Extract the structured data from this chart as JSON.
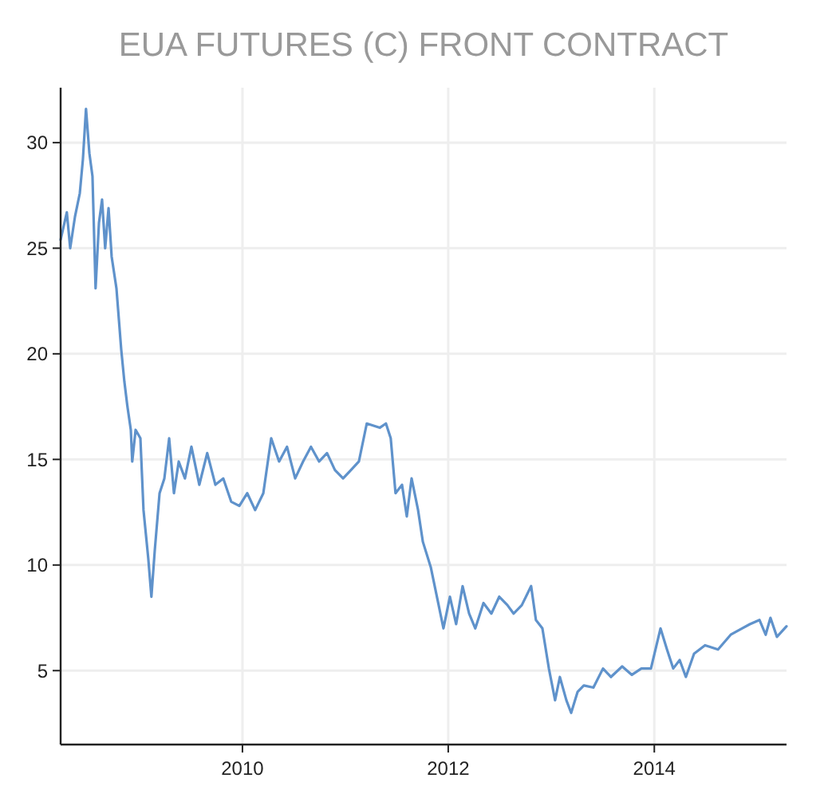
{
  "chart_data": {
    "type": "line",
    "title": "EUA FUTURES (C) FRONT CONTRACT",
    "x": [
      "2008-03-27",
      "2008-04-18",
      "2008-04-30",
      "2008-05-17",
      "2008-06-03",
      "2008-06-14",
      "2008-06-25",
      "2008-07-07",
      "2008-07-18",
      "2008-07-29",
      "2008-08-10",
      "2008-08-21",
      "2008-09-01",
      "2008-09-13",
      "2008-09-24",
      "2008-10-11",
      "2008-10-28",
      "2008-11-08",
      "2008-11-19",
      "2008-12-01",
      "2008-12-06",
      "2008-12-18",
      "2009-01-04",
      "2009-01-15",
      "2009-02-01",
      "2009-02-12",
      "2009-02-24",
      "2009-03-13",
      "2009-03-30",
      "2009-04-16",
      "2009-05-03",
      "2009-05-20",
      "2009-06-11",
      "2009-07-04",
      "2009-08-01",
      "2009-08-29",
      "2009-09-27",
      "2009-10-25",
      "2009-11-22",
      "2009-12-21",
      "2010-01-18",
      "2010-02-15",
      "2010-03-16",
      "2010-04-13",
      "2010-05-11",
      "2010-06-08",
      "2010-07-07",
      "2010-08-04",
      "2010-09-01",
      "2010-09-30",
      "2010-10-28",
      "2010-11-25",
      "2010-12-24",
      "2011-01-21",
      "2011-02-18",
      "2011-03-18",
      "2011-05-03",
      "2011-05-25",
      "2011-06-11",
      "2011-06-28",
      "2011-07-21",
      "2011-08-07",
      "2011-08-24",
      "2011-09-16",
      "2011-10-03",
      "2011-10-31",
      "2011-11-28",
      "2011-12-15",
      "2012-01-07",
      "2012-01-29",
      "2012-02-21",
      "2012-03-15",
      "2012-04-06",
      "2012-05-05",
      "2012-06-02",
      "2012-06-30",
      "2012-07-29",
      "2012-08-20",
      "2012-09-18",
      "2012-10-21",
      "2012-11-07",
      "2012-11-30",
      "2012-12-23",
      "2013-01-14",
      "2013-01-31",
      "2013-02-23",
      "2013-03-12",
      "2013-04-04",
      "2013-04-26",
      "2013-05-30",
      "2013-07-03",
      "2013-07-31",
      "2013-09-09",
      "2013-10-13",
      "2013-11-16",
      "2013-12-20",
      "2014-01-23",
      "2014-02-15",
      "2014-03-09",
      "2014-04-01",
      "2014-04-23",
      "2014-05-22",
      "2014-06-30",
      "2014-08-15",
      "2014-09-29",
      "2014-11-08",
      "2014-12-06",
      "2015-01-09",
      "2015-01-31",
      "2015-02-17",
      "2015-03-12",
      "2015-04-15"
    ],
    "series": [
      {
        "color": "#5f92cb",
        "values": [
          25.4,
          26.7,
          25,
          26.5,
          27.6,
          29.2,
          31.6,
          29.5,
          28.4,
          23.1,
          26.2,
          27.3,
          25,
          26.9,
          24.6,
          23.1,
          20.2,
          18.7,
          17.5,
          16.4,
          14.9,
          16.4,
          16,
          12.6,
          10.3,
          8.5,
          10.7,
          13.4,
          14.1,
          16,
          13.4,
          14.9,
          14.1,
          15.6,
          13.8,
          15.3,
          13.8,
          14.1,
          13,
          12.8,
          13.4,
          12.6,
          13.4,
          16,
          14.9,
          15.6,
          14.1,
          14.9,
          15.6,
          14.9,
          15.3,
          14.5,
          14.1,
          14.5,
          14.9,
          16.7,
          16.5,
          16.7,
          16,
          13.4,
          13.8,
          12.3,
          14.1,
          12.6,
          11.1,
          9.9,
          8.1,
          7,
          8.5,
          7.2,
          9,
          7.7,
          7,
          8.2,
          7.7,
          8.5,
          8.1,
          7.7,
          8.1,
          9,
          7.4,
          7,
          5.1,
          3.6,
          4.7,
          3.6,
          3,
          4,
          4.3,
          4.2,
          5.1,
          4.7,
          5.2,
          4.8,
          5.1,
          5.1,
          7,
          6,
          5.1,
          5.5,
          4.7,
          5.8,
          6.2,
          6,
          6.7,
          7,
          7.2,
          7.4,
          6.7,
          7.5,
          6.6,
          7.1
        ]
      }
    ],
    "xlim": [
      "2008-03-27",
      "2015-04-15"
    ],
    "ylim": [
      1.5,
      32.6
    ],
    "xticks": [
      {
        "value": "2010",
        "label": "2010"
      },
      {
        "value": "2012",
        "label": "2012"
      },
      {
        "value": "2014",
        "label": "2014"
      }
    ],
    "yticks": [
      5,
      10,
      15,
      20,
      25,
      30
    ],
    "grid": true,
    "line_style": "solid",
    "marker": "none"
  }
}
